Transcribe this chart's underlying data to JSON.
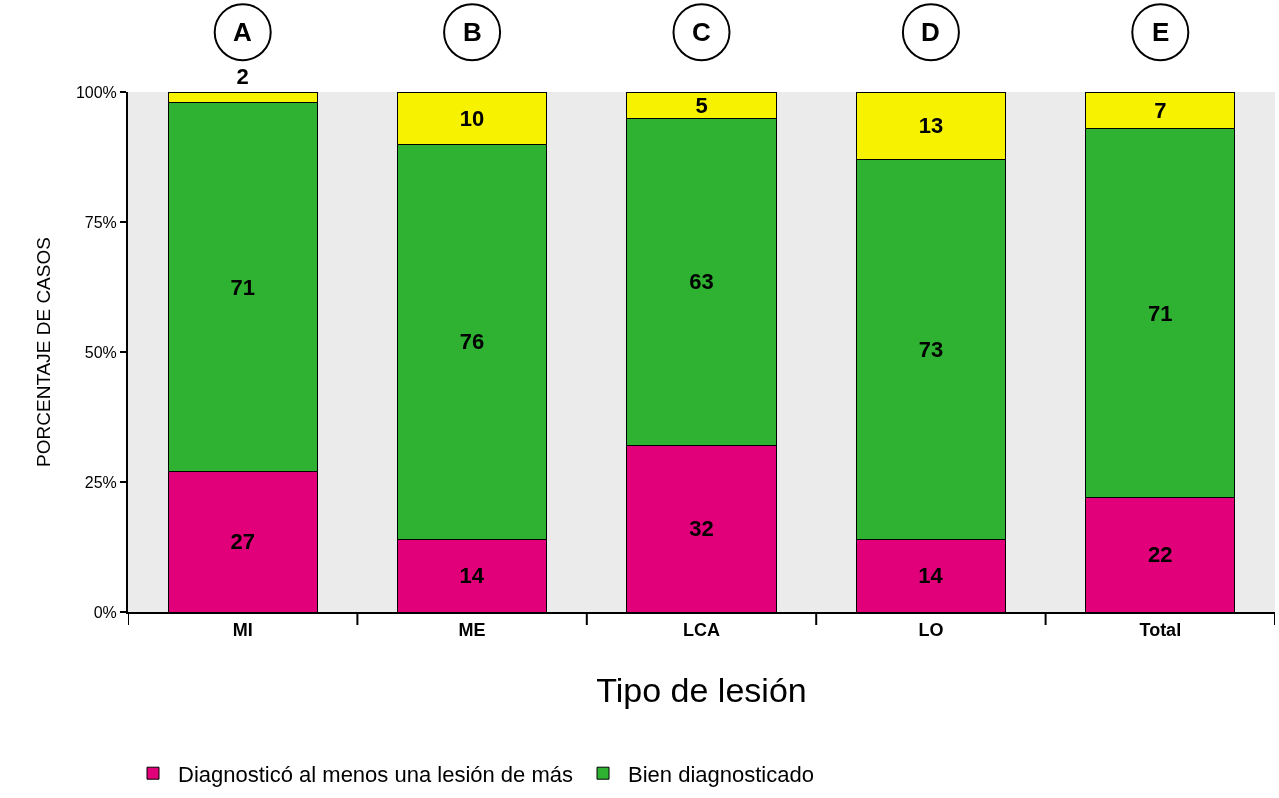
{
  "chart_data": {
    "type": "bar",
    "stacked": true,
    "xlabel": "Tipo de lesión",
    "ylabel": "PORCENTAJE DE CASOS",
    "categories": [
      "MI",
      "ME",
      "LCA",
      "LO",
      "Total"
    ],
    "series": [
      {
        "name": "Diagnosticó al menos una lesión de más",
        "color": "#e2007a",
        "values": [
          27,
          14,
          32,
          14,
          22
        ]
      },
      {
        "name": "Bien diagnosticado",
        "color": "#2fb232",
        "values": [
          71,
          76,
          63,
          73,
          71
        ]
      },
      {
        "color": "#f7f200",
        "values": [
          2,
          10,
          5,
          13,
          7
        ]
      }
    ],
    "ylim": [
      0,
      100
    ],
    "yticks": [
      {
        "value": 0,
        "label": "0%"
      },
      {
        "value": 25,
        "label": "25%"
      },
      {
        "value": 50,
        "label": "50%"
      },
      {
        "value": 75,
        "label": "75%"
      },
      {
        "value": 100,
        "label": "100%"
      }
    ],
    "annotations": [
      "A",
      "B",
      "C",
      "D",
      "E"
    ],
    "data_labels": true,
    "grid": false,
    "legend": "bottom"
  }
}
